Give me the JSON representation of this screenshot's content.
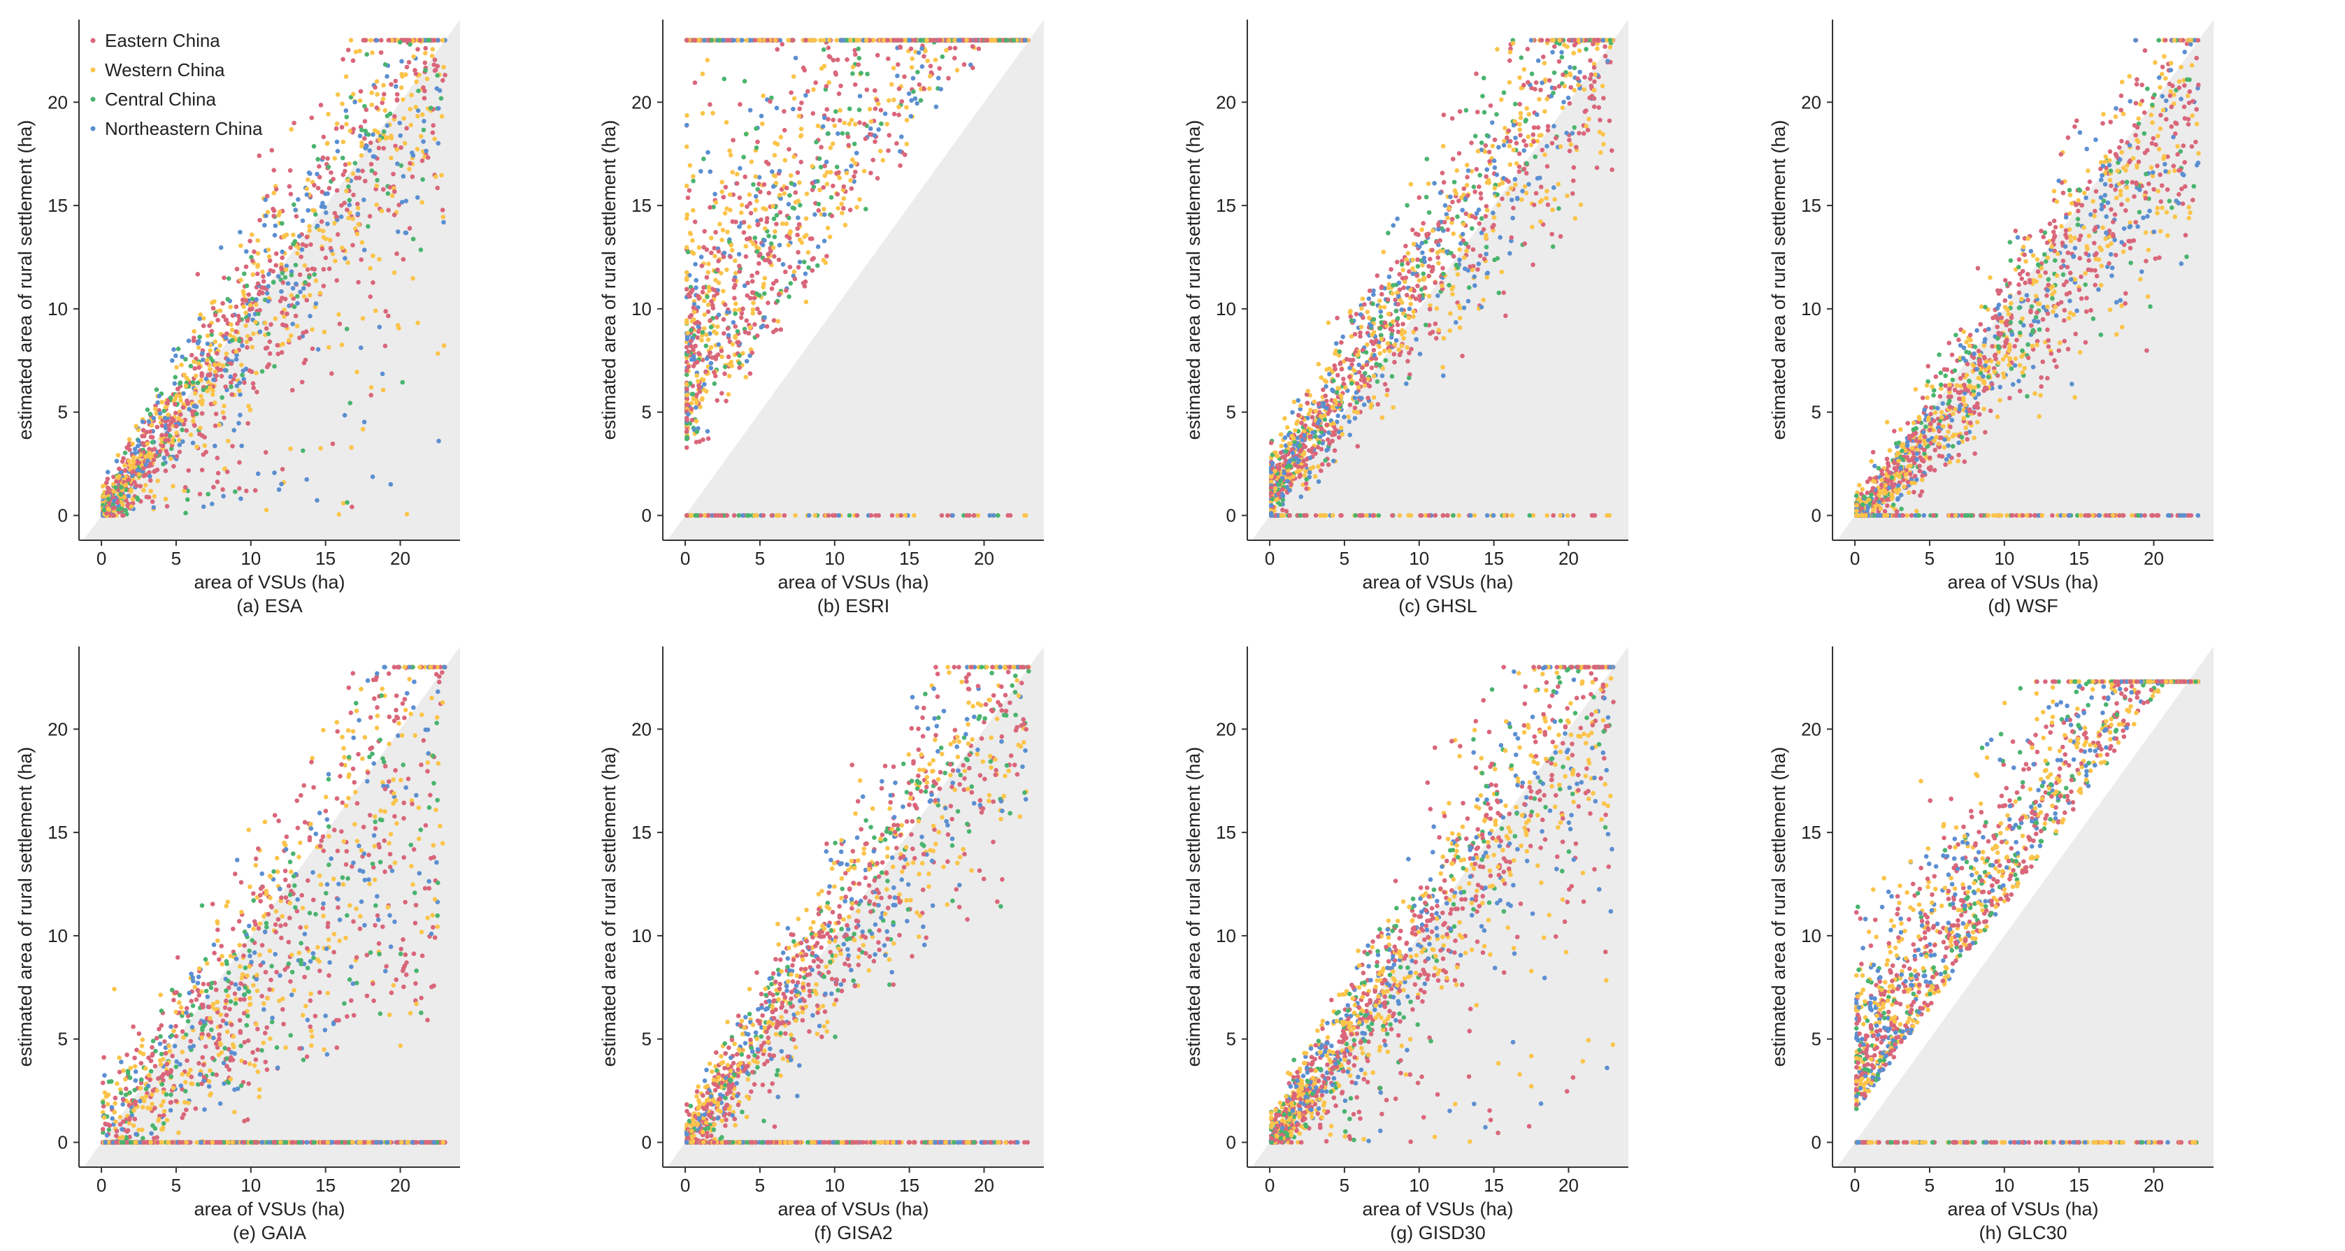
{
  "figure": {
    "legend": {
      "entries": [
        {
          "label": "Eastern China",
          "color": "#d9667a"
        },
        {
          "label": "Western China",
          "color": "#fbc44a"
        },
        {
          "label": "Central China",
          "color": "#4ab46e"
        },
        {
          "label": "Northeastern China",
          "color": "#5b8fd1"
        }
      ]
    },
    "colors": {
      "diagonal_region": "#ececec",
      "axis": "#333333"
    }
  },
  "chart_data": [
    {
      "type": "scatter",
      "panel": "(a) ESA",
      "caption": "(a) ESA",
      "xlabel": "area of VSUs (ha)",
      "ylabel": "estimated area of rural settlement (ha)",
      "xlim": [
        -1.5,
        24
      ],
      "ylim": [
        -1.2,
        24
      ],
      "xticks": [
        0,
        5,
        10,
        15,
        20
      ],
      "yticks": [
        0,
        5,
        10,
        15,
        20
      ],
      "diagonal": "y = x",
      "pattern": "along_diagonal",
      "series": [
        "Eastern China",
        "Western China",
        "Central China",
        "Northeastern China"
      ]
    },
    {
      "type": "scatter",
      "panel": "(b) ESRI",
      "caption": "(b) ESRI",
      "xlabel": "area of VSUs (ha)",
      "ylabel": "estimated area of rural settlement (ha)",
      "xlim": [
        -1.5,
        24
      ],
      "ylim": [
        -1.2,
        24
      ],
      "xticks": [
        0,
        5,
        10,
        15,
        20
      ],
      "yticks": [
        0,
        5,
        10,
        15,
        20
      ],
      "diagonal": "y = x",
      "pattern": "overestimate",
      "series": [
        "Eastern China",
        "Western China",
        "Central China",
        "Northeastern China"
      ]
    },
    {
      "type": "scatter",
      "panel": "(c) GHSL",
      "caption": "(c) GHSL",
      "xlabel": "area of VSUs (ha)",
      "ylabel": "estimated area of rural settlement (ha)",
      "xlim": [
        -1.5,
        24
      ],
      "ylim": [
        -1.2,
        24
      ],
      "xticks": [
        0,
        5,
        10,
        15,
        20
      ],
      "yticks": [
        0,
        5,
        10,
        15,
        20
      ],
      "diagonal": "y = x",
      "pattern": "slight_overestimate",
      "series": [
        "Eastern China",
        "Western China",
        "Central China",
        "Northeastern China"
      ]
    },
    {
      "type": "scatter",
      "panel": "(d) WSF",
      "caption": "(d) WSF",
      "xlabel": "area of VSUs (ha)",
      "ylabel": "estimated area of rural settlement (ha)",
      "xlim": [
        -1.5,
        24
      ],
      "ylim": [
        -1.2,
        24
      ],
      "xticks": [
        0,
        5,
        10,
        15,
        20
      ],
      "yticks": [
        0,
        5,
        10,
        15,
        20
      ],
      "diagonal": "y = x",
      "pattern": "slight_underestimate",
      "series": [
        "Eastern China",
        "Western China",
        "Central China",
        "Northeastern China"
      ]
    },
    {
      "type": "scatter",
      "panel": "(e) GAIA",
      "caption": "(e) GAIA",
      "xlabel": "area of VSUs (ha)",
      "ylabel": "estimated area of rural settlement (ha)",
      "xlim": [
        -1.5,
        24
      ],
      "ylim": [
        -1.2,
        24
      ],
      "xticks": [
        0,
        5,
        10,
        15,
        20
      ],
      "yticks": [
        0,
        5,
        10,
        15,
        20
      ],
      "diagonal": "y = x",
      "pattern": "wide_scatter",
      "series": [
        "Eastern China",
        "Western China",
        "Central China",
        "Northeastern China"
      ]
    },
    {
      "type": "scatter",
      "panel": "(f) GISA2",
      "caption": "(f) GISA2",
      "xlabel": "area of VSUs (ha)",
      "ylabel": "estimated area of rural settlement (ha)",
      "xlim": [
        -1.5,
        24
      ],
      "ylim": [
        -1.2,
        24
      ],
      "xticks": [
        0,
        5,
        10,
        15,
        20
      ],
      "yticks": [
        0,
        5,
        10,
        15,
        20
      ],
      "diagonal": "y = x",
      "pattern": "along_diagonal_zero_row",
      "series": [
        "Eastern China",
        "Western China",
        "Central China",
        "Northeastern China"
      ]
    },
    {
      "type": "scatter",
      "panel": "(g) GISD30",
      "caption": "(g) GISD30",
      "xlabel": "area of VSUs (ha)",
      "ylabel": "estimated area of rural settlement (ha)",
      "xlim": [
        -1.5,
        24
      ],
      "ylim": [
        -1.2,
        24
      ],
      "xticks": [
        0,
        5,
        10,
        15,
        20
      ],
      "yticks": [
        0,
        5,
        10,
        15,
        20
      ],
      "diagonal": "y = x",
      "pattern": "along_diagonal",
      "series": [
        "Eastern China",
        "Western China",
        "Central China",
        "Northeastern China"
      ]
    },
    {
      "type": "scatter",
      "panel": "(h) GLC30",
      "caption": "(h) GLC30",
      "xlabel": "area of VSUs (ha)",
      "ylabel": "estimated area of rural settlement (ha)",
      "xlim": [
        -1.5,
        24
      ],
      "ylim": [
        -1.2,
        24
      ],
      "xticks": [
        0,
        5,
        10,
        15,
        20
      ],
      "yticks": [
        0,
        5,
        10,
        15,
        20
      ],
      "diagonal": "y = x",
      "pattern": "overestimate_saturated",
      "series": [
        "Eastern China",
        "Western China",
        "Central China",
        "Northeastern China"
      ]
    }
  ]
}
